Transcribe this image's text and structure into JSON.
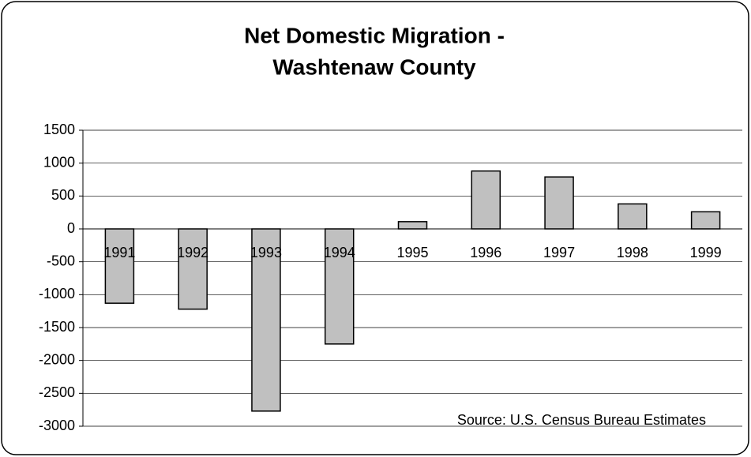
{
  "chart_data": {
    "type": "bar",
    "title": [
      "Net Domestic Migration -",
      "Washtenaw County"
    ],
    "categories": [
      "1991",
      "1992",
      "1993",
      "1994",
      "1995",
      "1996",
      "1997",
      "1998",
      "1999"
    ],
    "values": [
      -1130,
      -1220,
      -2770,
      -1750,
      110,
      880,
      790,
      380,
      260
    ],
    "color": "#c0c0c0",
    "ylim": [
      -3000,
      1500
    ],
    "yticks": [
      -3000,
      -2500,
      -2000,
      -1500,
      -1000,
      -500,
      0,
      500,
      1000,
      1500
    ],
    "grid": true,
    "annotation": "Source: U.S. Census Bureau Estimates"
  }
}
